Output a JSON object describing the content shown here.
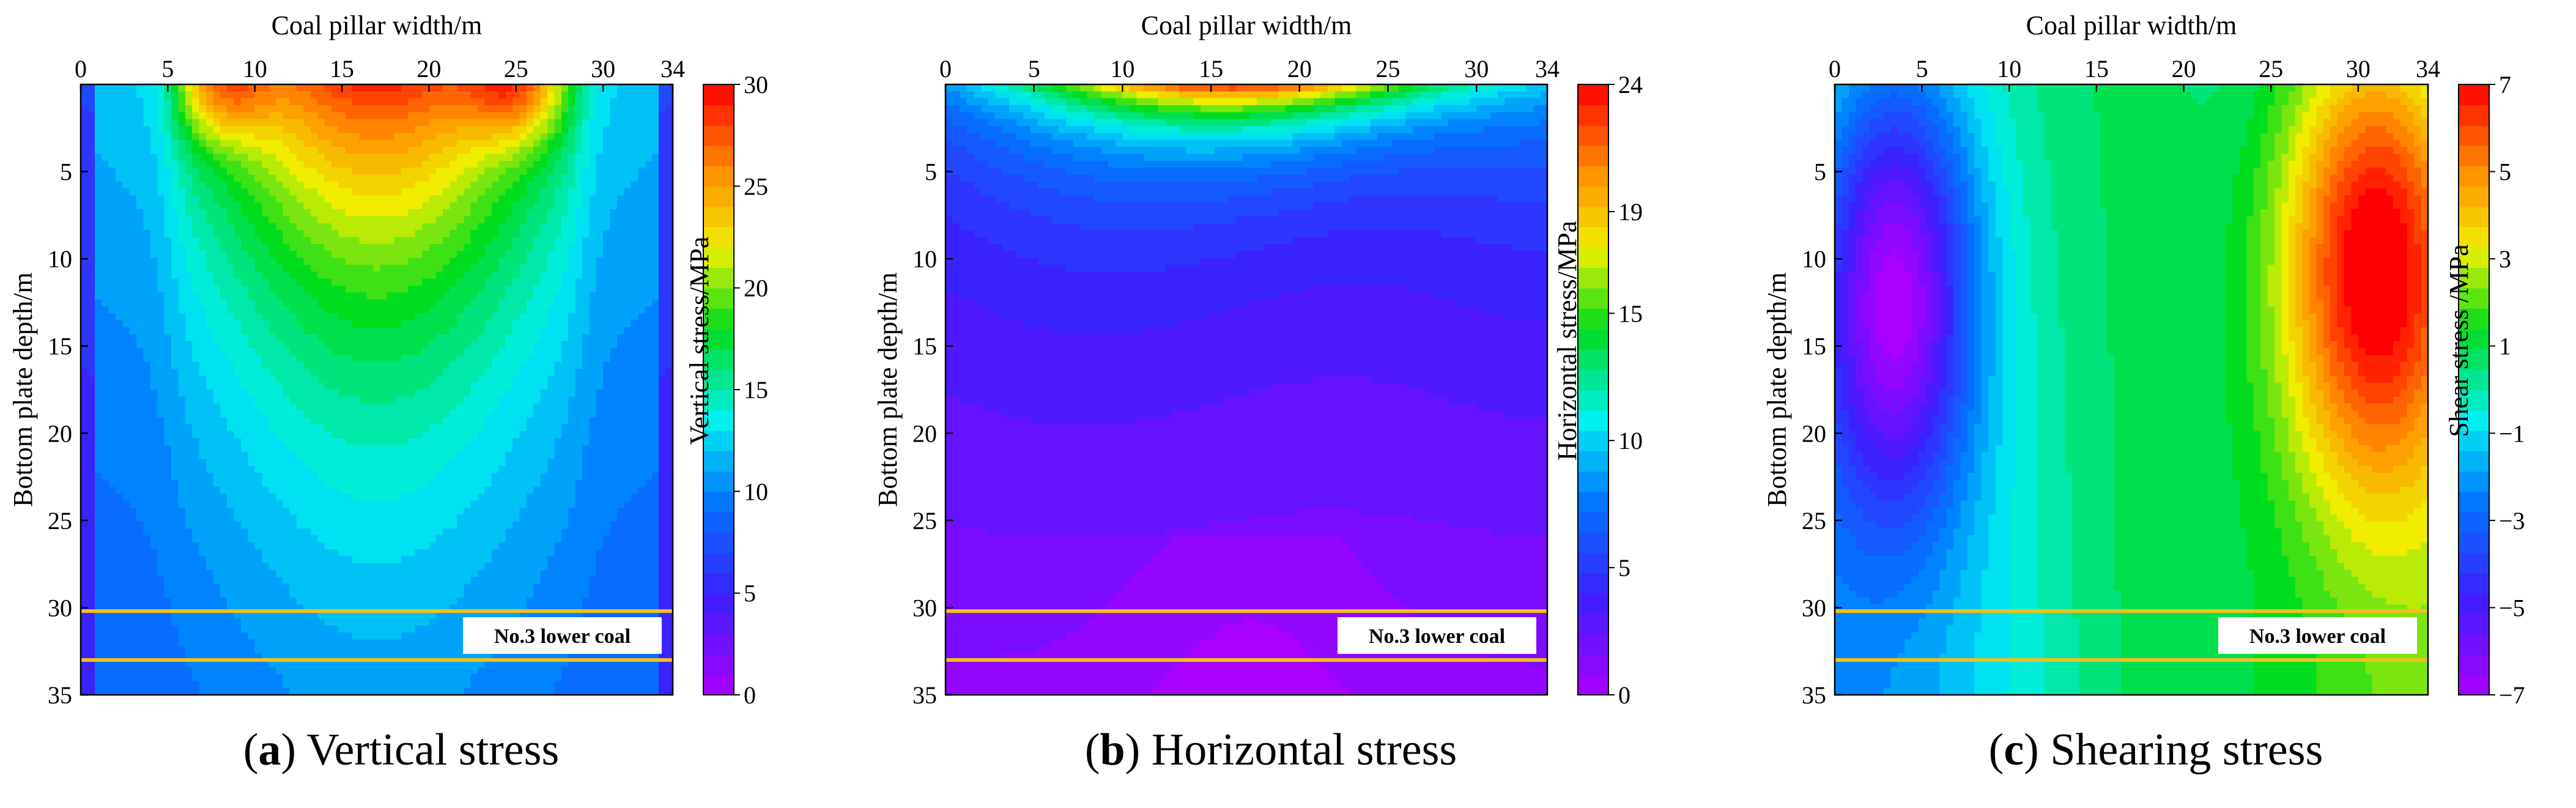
{
  "chart_data": [
    {
      "type": "heatmap",
      "panel_letter": "a",
      "caption_text": "Vertical stress",
      "title": "(a) Vertical stress",
      "xlabel": "Coal pillar width/m",
      "ylabel": "Bottom plate depth/m",
      "xlim": [
        0,
        34
      ],
      "ylim": [
        35,
        0
      ],
      "x_ticks": [
        "0",
        "5",
        "10",
        "15",
        "20",
        "25",
        "30",
        "34"
      ],
      "y_ticks": [
        "5",
        "10",
        "15",
        "20",
        "25",
        "30",
        "35"
      ],
      "colorbar": {
        "label": "Vertical stress/MPa",
        "min": 0,
        "max": 30,
        "ticks": [
          "0",
          "5",
          "10",
          "15",
          "20",
          "25",
          "30"
        ]
      },
      "field": "vertical",
      "coal_seam": {
        "label": "No.3 lower coal",
        "top_depth": 30.2,
        "bottom_depth": 33.0
      },
      "peak_stress": 30
    },
    {
      "type": "heatmap",
      "panel_letter": "b",
      "caption_text": "Horizontal stress",
      "title": "(b) Horizontal stress",
      "xlabel": "Coal pillar width/m",
      "ylabel": "Bottom plate depth/m",
      "xlim": [
        0,
        34
      ],
      "ylim": [
        35,
        0
      ],
      "x_ticks": [
        "0",
        "5",
        "10",
        "15",
        "20",
        "25",
        "30",
        "34"
      ],
      "y_ticks": [
        "5",
        "10",
        "15",
        "20",
        "25",
        "30",
        "35"
      ],
      "colorbar": {
        "label": "Horizontal stress/MPa",
        "min": 0,
        "max": 24,
        "ticks": [
          "0",
          "5",
          "10",
          "15",
          "19",
          "24"
        ]
      },
      "field": "horizontal",
      "coal_seam": {
        "label": "No.3 lower coal",
        "top_depth": 30.2,
        "bottom_depth": 33.0
      },
      "peak_stress": 24
    },
    {
      "type": "heatmap",
      "panel_letter": "c",
      "caption_text": "Shearing stress",
      "title": "(c) Shearing stress",
      "xlabel": "Coal pillar width/m",
      "ylabel": "Bottom plate depth/m",
      "xlim": [
        0,
        34
      ],
      "ylim": [
        35,
        0
      ],
      "x_ticks": [
        "0",
        "5",
        "10",
        "15",
        "20",
        "25",
        "30",
        "34"
      ],
      "y_ticks": [
        "5",
        "10",
        "15",
        "20",
        "25",
        "30",
        "35"
      ],
      "colorbar": {
        "label": "Shear stress /MPa",
        "min": -7,
        "max": 7,
        "ticks": [
          "−7",
          "−5",
          "−3",
          "−1",
          "1",
          "3",
          "5",
          "7"
        ]
      },
      "field": "shear",
      "coal_seam": {
        "label": "No.3 lower coal",
        "top_depth": 30.2,
        "bottom_depth": 33.0
      },
      "peak_stress": 7
    }
  ],
  "seam_line_color": "#f0c020"
}
